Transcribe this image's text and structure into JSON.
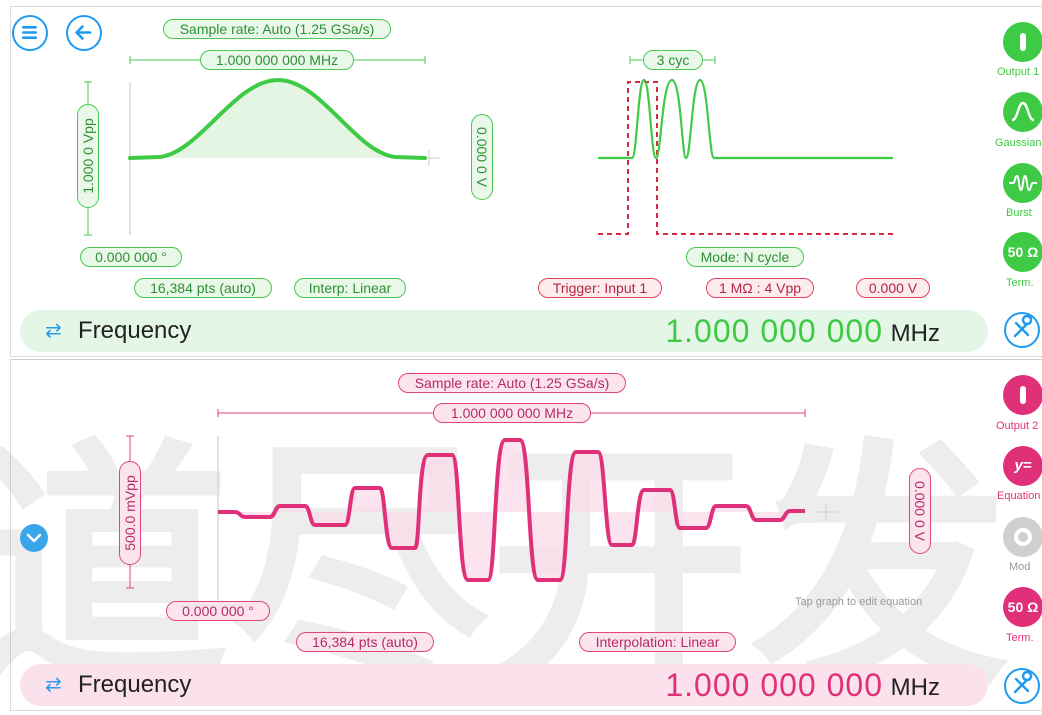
{
  "channel1": {
    "sample_rate": "Sample rate: Auto (1.25 GSa/s)",
    "period": "1.000 000 000 MHz",
    "amplitude": "1.000 0 Vpp",
    "offset": "0.000 0 V",
    "phase": "0.000 000 °",
    "points": "16,384 pts (auto)",
    "interp": "Interp: Linear",
    "burst_cycles": "3 cyc",
    "mode": "Mode: N cycle",
    "trigger": "Trigger: Input 1",
    "impedance": "1 MΩ : 4 Vpp",
    "trigger_level": "0.000 V",
    "frequency_label": "Frequency",
    "frequency_value": "1.000 000 000",
    "frequency_unit": "MHz",
    "side": {
      "output": "Output 1",
      "wave": "Gaussian",
      "burst": "Burst",
      "term_value": "50 Ω",
      "term": "Term."
    },
    "colors": {
      "accent": "#3fca45",
      "trigger": "#e2445e"
    }
  },
  "channel2": {
    "sample_rate": "Sample rate: Auto (1.25 GSa/s)",
    "period": "1.000 000 000 MHz",
    "amplitude": "500.0 mVpp",
    "offset": "0.000 0 V",
    "phase": "0.000 000 °",
    "points": "16,384 pts (auto)",
    "interp": "Interpolation: Linear",
    "hint": "Tap graph to edit equation",
    "frequency_label": "Frequency",
    "frequency_value": "1.000 000 000",
    "frequency_unit": "MHz",
    "side": {
      "output": "Output 2",
      "equation_icon": "y=",
      "wave": "Equation",
      "mod": "Mod",
      "term_value": "50 Ω",
      "term": "Term."
    },
    "colors": {
      "accent": "#e0307a"
    }
  },
  "watermark": "道尽开发",
  "icons": [
    "menu-icon",
    "back-icon",
    "wrench-icon",
    "chevron-down-icon",
    "swap-icon"
  ]
}
